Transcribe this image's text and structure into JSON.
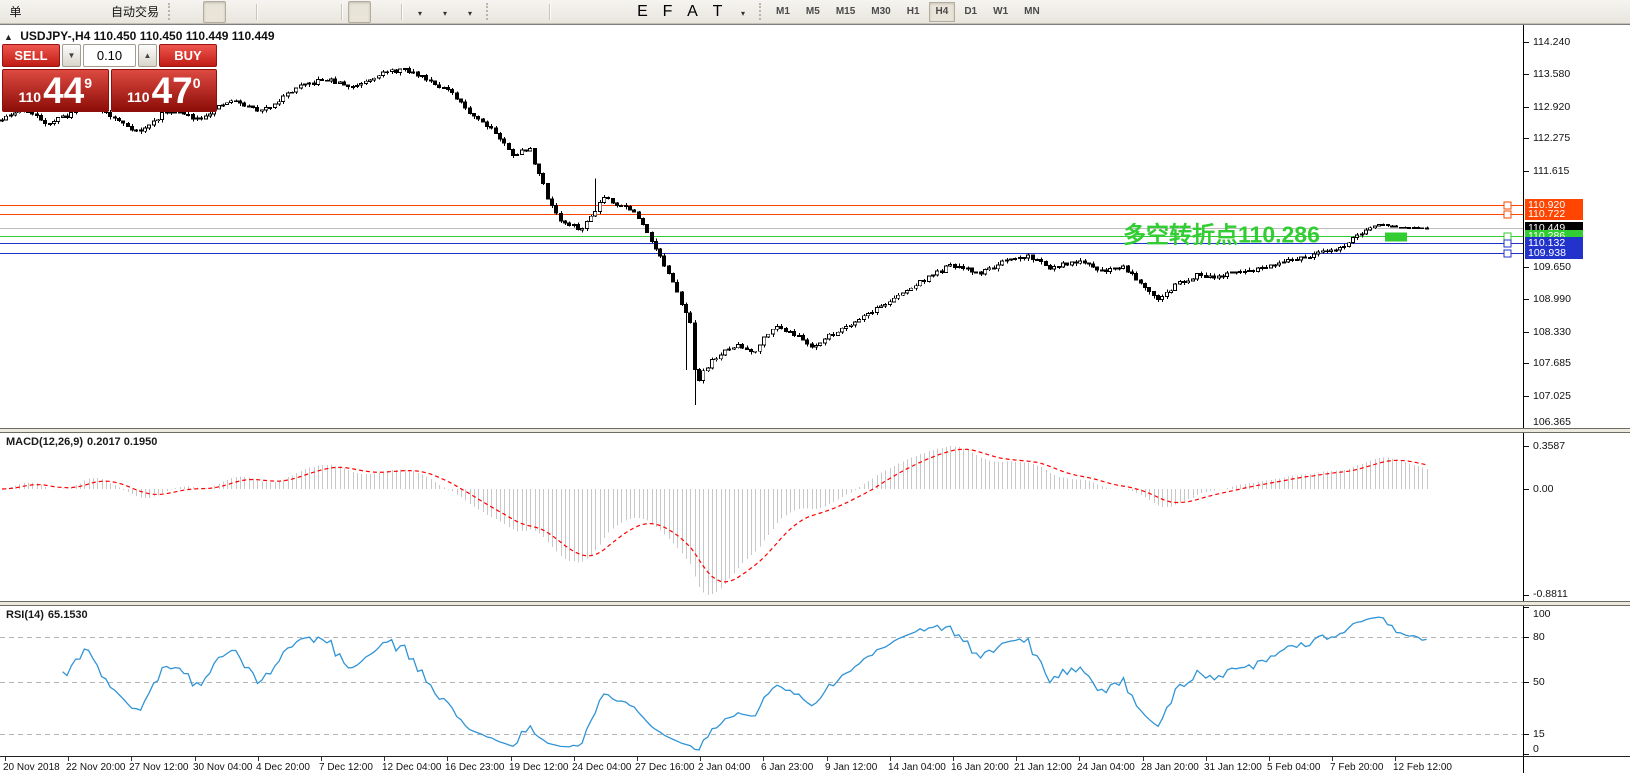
{
  "toolbar": {
    "partial_button": "单",
    "autotrade": "自动交易",
    "icons_left": [
      "history-icon",
      "chart-window-icon",
      "signal-icon",
      "autotrade-icon"
    ],
    "chart_tools": [
      "bar-chart-icon",
      "candlestick-icon",
      "line-chart-icon",
      "zoom-in-icon",
      "zoom-out-icon",
      "tile-windows-icon",
      "auto-scroll-icon",
      "chart-shift-icon",
      "new-chart-icon",
      "period-icon",
      "template-icon"
    ],
    "draw_tools": [
      "cursor-icon",
      "crosshair-icon",
      "vertical-line-icon",
      "horizontal-line-icon",
      "trendline-icon",
      "channel-icon",
      "fibonacci-icon",
      "text-icon",
      "text-label-icon",
      "arrows-icon"
    ],
    "timeframes": [
      "M1",
      "M5",
      "M15",
      "M30",
      "H1",
      "H4",
      "D1",
      "W1",
      "MN"
    ],
    "active_timeframe": "H4",
    "right_icons": [
      "search-icon",
      "chat-icon"
    ]
  },
  "window": {
    "title": "USDJPY-,H4",
    "ohlc": "110.450 110.450 110.449 110.449"
  },
  "trade_panel": {
    "sell_label": "SELL",
    "buy_label": "BUY",
    "volume": "0.10",
    "sell_price": {
      "prefix": "110",
      "main": "44",
      "sup": "9"
    },
    "buy_price": {
      "prefix": "110",
      "main": "47",
      "sup": "0"
    }
  },
  "chart_data": {
    "type": "candlestick",
    "symbol": "USDJPY-",
    "timeframe": "H4",
    "current_bid": 110.449,
    "y_axis_ticks": [
      114.24,
      113.58,
      112.92,
      112.275,
      111.615,
      109.65,
      108.99,
      108.33,
      107.685,
      107.025,
      106.365
    ],
    "price_lines": [
      {
        "value": 110.92,
        "line_color": "#FF4500",
        "tag_bg": "#FF4500",
        "handle": true
      },
      {
        "value": 110.722,
        "line_color": "#FF4500",
        "tag_bg": "#FF4500",
        "handle": true
      },
      {
        "value": 110.449,
        "line_color": "#BDBDBD",
        "tag_bg": "#000000",
        "handle": false
      },
      {
        "value": 110.286,
        "line_color": "#32CD32",
        "tag_bg": "#32CD32",
        "handle": true
      },
      {
        "value": 110.132,
        "line_color": "#2233CC",
        "tag_bg": "#2233CC",
        "handle": true
      },
      {
        "value": 109.938,
        "line_color": "#2233CC",
        "tag_bg": "#2233CC",
        "handle": true
      }
    ],
    "annotation": {
      "text": "多空转折点110.286",
      "price": 110.286,
      "color": "#32CD32"
    },
    "price_anchors": [
      [
        0,
        112.62
      ],
      [
        22,
        112.88
      ],
      [
        48,
        112.58
      ],
      [
        68,
        112.75
      ],
      [
        88,
        113.05
      ],
      [
        112,
        112.7
      ],
      [
        140,
        112.4
      ],
      [
        168,
        112.85
      ],
      [
        198,
        112.68
      ],
      [
        232,
        113.05
      ],
      [
        262,
        112.82
      ],
      [
        295,
        113.28
      ],
      [
        325,
        113.48
      ],
      [
        352,
        113.32
      ],
      [
        378,
        113.58
      ],
      [
        402,
        113.68
      ],
      [
        425,
        113.52
      ],
      [
        448,
        113.25
      ],
      [
        470,
        112.8
      ],
      [
        492,
        112.48
      ],
      [
        512,
        111.95
      ],
      [
        530,
        112.05
      ],
      [
        548,
        111.05
      ],
      [
        562,
        110.55
      ],
      [
        582,
        110.42
      ],
      [
        596,
        110.85
      ],
      [
        604,
        111.1
      ],
      [
        616,
        110.95
      ],
      [
        632,
        110.82
      ],
      [
        648,
        110.35
      ],
      [
        664,
        109.7
      ],
      [
        680,
        109.0
      ],
      [
        690,
        108.6
      ],
      [
        696,
        107.25
      ],
      [
        704,
        107.55
      ],
      [
        716,
        107.8
      ],
      [
        736,
        108.05
      ],
      [
        754,
        107.92
      ],
      [
        772,
        108.42
      ],
      [
        790,
        108.35
      ],
      [
        812,
        108.02
      ],
      [
        836,
        108.32
      ],
      [
        866,
        108.68
      ],
      [
        896,
        109.02
      ],
      [
        926,
        109.42
      ],
      [
        952,
        109.68
      ],
      [
        978,
        109.52
      ],
      [
        1002,
        109.72
      ],
      [
        1028,
        109.88
      ],
      [
        1052,
        109.62
      ],
      [
        1076,
        109.76
      ],
      [
        1102,
        109.58
      ],
      [
        1124,
        109.66
      ],
      [
        1144,
        109.28
      ],
      [
        1160,
        108.98
      ],
      [
        1178,
        109.32
      ],
      [
        1198,
        109.48
      ],
      [
        1222,
        109.46
      ],
      [
        1248,
        109.58
      ],
      [
        1274,
        109.66
      ],
      [
        1298,
        109.82
      ],
      [
        1322,
        109.94
      ],
      [
        1344,
        110.08
      ],
      [
        1362,
        110.35
      ],
      [
        1378,
        110.52
      ],
      [
        1394,
        110.47
      ],
      [
        1412,
        110.44
      ],
      [
        1427,
        110.45
      ]
    ],
    "wick_overrides": [
      [
        596,
        111.45,
        null
      ],
      [
        688,
        null,
        107.55
      ],
      [
        696,
        null,
        106.83
      ]
    ],
    "x_labels": [
      "20 Nov 2018",
      "22 Nov 20:00",
      "27 Nov 12:00",
      "30 Nov 04:00",
      "4 Dec 20:00",
      "7 Dec 12:00",
      "12 Dec 04:00",
      "16 Dec 23:00",
      "19 Dec 12:00",
      "24 Dec 04:00",
      "27 Dec 16:00",
      "2 Jan 04:00",
      "6 Jan 23:00",
      "9 Jan 12:00",
      "14 Jan 04:00",
      "16 Jan 20:00",
      "21 Jan 12:00",
      "24 Jan 04:00",
      "28 Jan 20:00",
      "31 Jan 12:00",
      "5 Feb 04:00",
      "7 Feb 20:00",
      "12 Feb 12:00"
    ],
    "macd": {
      "title": "MACD(12,26,9)",
      "values": "0.2017 0.1950",
      "params": [
        12,
        26,
        9
      ],
      "axis_labels": [
        "0.3587",
        "0.00",
        "-0.8811"
      ]
    },
    "rsi": {
      "title": "RSI(14)",
      "value": "65.1530",
      "period": 14,
      "levels": [
        80,
        50,
        15
      ],
      "axis_labels": [
        100,
        80,
        50,
        15,
        0
      ]
    },
    "colors": {
      "bull": "#FFFFFF",
      "bear": "#000000",
      "outline": "#000000",
      "macd_hist": "#C8C8C8",
      "macd_signal": "#FF0000",
      "rsi_line": "#3094D6",
      "level_dash": "#B4B4B4"
    }
  }
}
